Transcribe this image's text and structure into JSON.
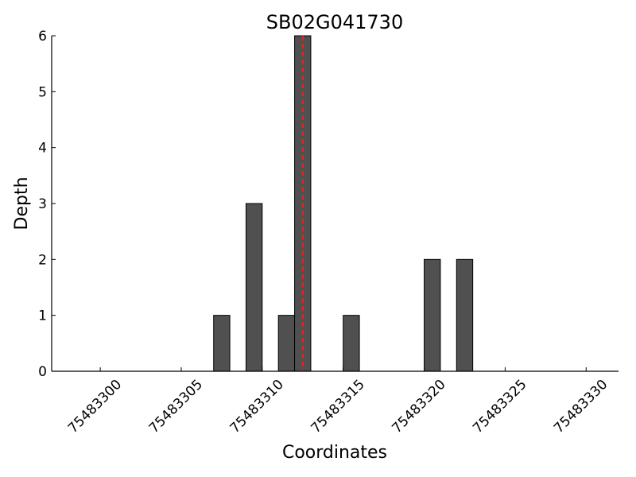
{
  "chart_data": {
    "type": "bar",
    "title": "SB02G041730",
    "x_label": "Coordinates",
    "y_label": "Depth",
    "x": [
      75483307,
      75483309,
      75483311,
      75483312,
      75483315,
      75483320,
      75483322
    ],
    "values": [
      1,
      3,
      1,
      6,
      1,
      2,
      2
    ],
    "bar_width": 1,
    "color": "#505050",
    "xlim": [
      75483297,
      75483332
    ],
    "xticks": [
      75483300,
      75483305,
      75483310,
      75483315,
      75483320,
      75483325,
      75483330
    ],
    "ylim": [
      0,
      6
    ],
    "yticks": [
      0,
      1,
      2,
      3,
      4,
      5,
      6
    ],
    "vline": {
      "x": 75483312.5,
      "color": "#d62728"
    }
  }
}
